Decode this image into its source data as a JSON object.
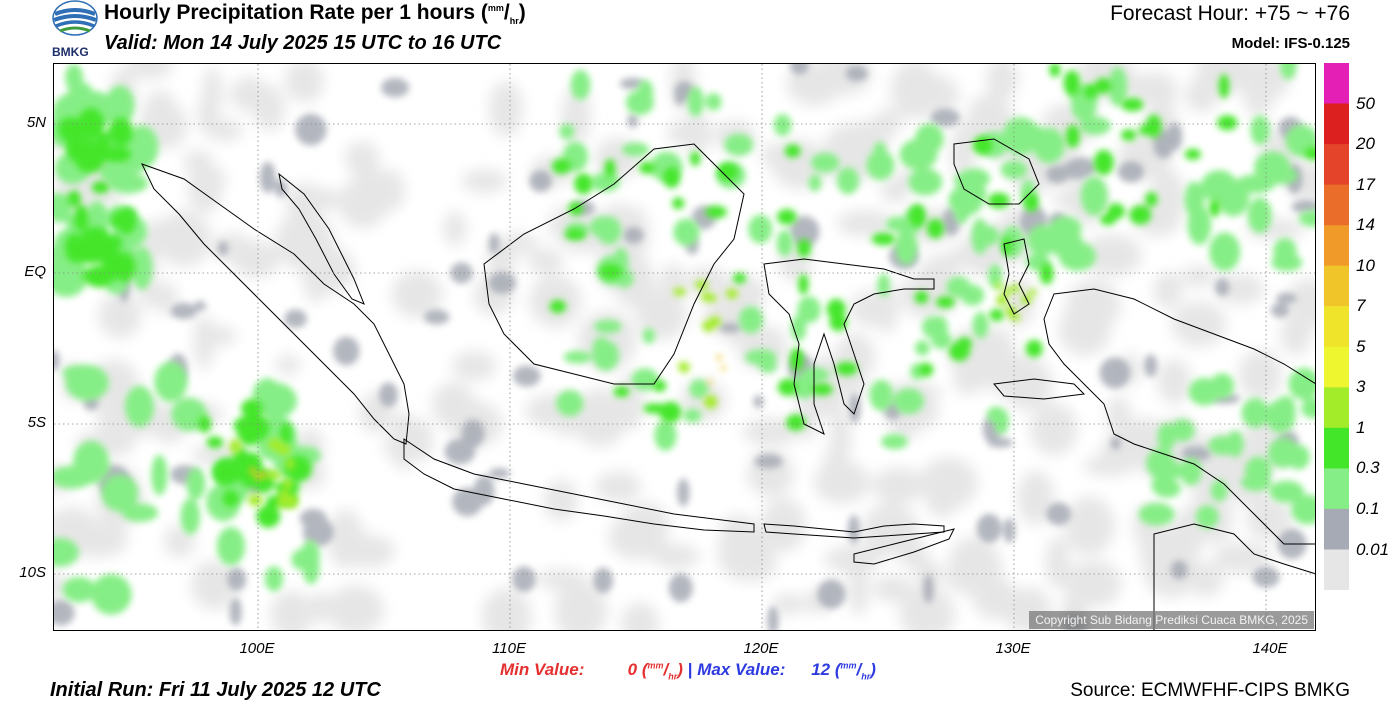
{
  "header": {
    "title_main": "Hourly Precipitation Rate per 1 hours (",
    "title_unit_top": "mm",
    "title_unit_bottom": "hr",
    "title_close": ")",
    "valid": "Valid: Mon 14 July 2025 15 UTC to 16 UTC",
    "forecast_hour": "Forecast Hour: +75 ~ +76",
    "model": "Model: IFS-0.125",
    "logo_text": "BMKG"
  },
  "map": {
    "lat_labels": [
      "5N",
      "EQ",
      "5S",
      "10S"
    ],
    "lon_labels": [
      "100E",
      "110E",
      "120E",
      "130E",
      "140E"
    ],
    "copyright": "Copyright Sub Bidang Prediksi Cuaca BMKG, 2025"
  },
  "colorbar": {
    "labels": [
      "50",
      "20",
      "17",
      "14",
      "10",
      "7",
      "5",
      "3",
      "1",
      "0.3",
      "0.1",
      "0.01"
    ],
    "colors": [
      "#e41fb5",
      "#dc1f1f",
      "#e4442a",
      "#ea6e2a",
      "#f09a2a",
      "#f0c52a",
      "#f0e42a",
      "#eef630",
      "#a3ec2a",
      "#44e62a",
      "#86ee86",
      "#a6aab4",
      "#e6e6e6"
    ]
  },
  "footer": {
    "min_label": "Min Value:",
    "min_value": "0",
    "max_label": "Max Value:",
    "max_value": "12",
    "separator": "|",
    "unit_top": "mm",
    "unit_bottom": "hr",
    "initial_run": "Initial Run: Fri 11 July 2025 12 UTC",
    "source": "Source: ECMWFHF-CIPS BMKG"
  }
}
